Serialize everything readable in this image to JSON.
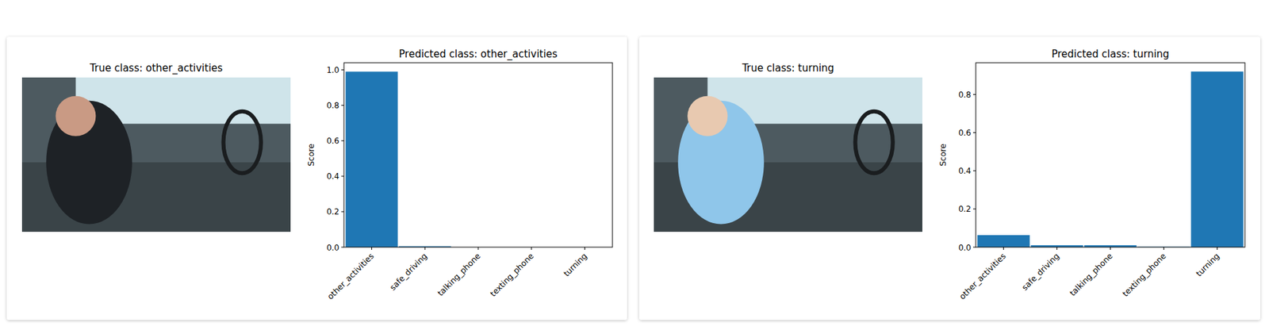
{
  "chart_data": [
    {
      "type": "bar",
      "title": "Predicted class: other_activities",
      "y_label": "Score",
      "categories": [
        "other_activities",
        "safe_driving",
        "talking_phone",
        "texting_phone",
        "turning"
      ],
      "values": [
        0.99,
        0.005,
        0,
        0,
        0
      ],
      "color": "#1f77b4",
      "ylim": [
        0,
        1.04
      ],
      "yticks": [
        {
          "value": 0,
          "label": "0.0"
        },
        0.2,
        0.4,
        0.6,
        0.8,
        {
          "value": 1,
          "label": "1.0"
        }
      ],
      "grid": false
    },
    {
      "type": "bar",
      "title": "Predicted class: turning",
      "y_label": "Score",
      "categories": [
        "other_activities",
        "safe_driving",
        "talking_phone",
        "texting_phone",
        "turning"
      ],
      "values": [
        0.063,
        0.01,
        0.01,
        0.002,
        0.92
      ],
      "color": "#1f77b4",
      "ylim": [
        0,
        0.966
      ],
      "yticks": [
        {
          "value": 0,
          "label": "0.0"
        },
        0.2,
        0.4,
        0.6,
        0.8
      ],
      "grid": false
    }
  ],
  "images": [
    {
      "title": "True class: other_activities"
    },
    {
      "title": "True class: turning"
    }
  ]
}
